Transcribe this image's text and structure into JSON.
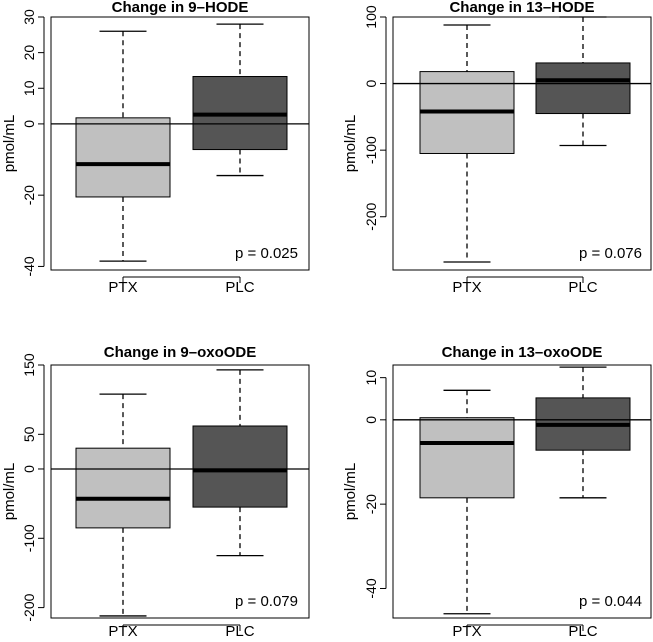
{
  "chart_data": [
    {
      "type": "boxplot",
      "title": "Change in 9–HODE",
      "ylabel": "pmol/mL",
      "categories": [
        "PTX",
        "PLC"
      ],
      "yticks": [
        30,
        20,
        10,
        0,
        -20,
        -40
      ],
      "ylim": [
        -41,
        30
      ],
      "reference_line": 0,
      "annotation": "p = 0.025",
      "boxes": [
        {
          "name": "PTX",
          "whisker_low": -38.5,
          "q1": -20.5,
          "median": -11.3,
          "q3": 1.7,
          "whisker_high": 26,
          "color": "#c0c0c0"
        },
        {
          "name": "PLC",
          "whisker_low": -14.5,
          "q1": -7.2,
          "median": 2.6,
          "q3": 13.3,
          "whisker_high": 28,
          "color": "#555555"
        }
      ]
    },
    {
      "type": "boxplot",
      "title": "Change in 13–HODE",
      "ylabel": "pmol/mL",
      "categories": [
        "PTX",
        "PLC"
      ],
      "yticks": [
        100,
        0,
        -100,
        -200
      ],
      "ylim": [
        -280,
        100
      ],
      "reference_line": 0,
      "annotation": "p = 0.076",
      "boxes": [
        {
          "name": "PTX",
          "whisker_low": -268,
          "q1": -105,
          "median": -42,
          "q3": 18,
          "whisker_high": 88,
          "color": "#c0c0c0"
        },
        {
          "name": "PLC",
          "whisker_low": -93,
          "q1": -45,
          "median": 5,
          "q3": 31,
          "whisker_high": 100,
          "color": "#555555"
        }
      ]
    },
    {
      "type": "boxplot",
      "title": "Change in 9–oxoODE",
      "ylabel": "pmol/mL",
      "categories": [
        "PTX",
        "PLC"
      ],
      "yticks": [
        150,
        50,
        0,
        -100,
        -200
      ],
      "ylim": [
        -215,
        150
      ],
      "reference_line": 0,
      "annotation": "p = 0.079",
      "boxes": [
        {
          "name": "PTX",
          "whisker_low": -212,
          "q1": -85,
          "median": -43,
          "q3": 30,
          "whisker_high": 108,
          "color": "#c0c0c0"
        },
        {
          "name": "PLC",
          "whisker_low": -125,
          "q1": -55,
          "median": -2,
          "q3": 62,
          "whisker_high": 143,
          "color": "#555555"
        }
      ]
    },
    {
      "type": "boxplot",
      "title": "Change in 13–oxoODE",
      "ylabel": "pmol/mL",
      "categories": [
        "PTX",
        "PLC"
      ],
      "yticks": [
        10,
        0,
        -20,
        -40
      ],
      "ylim": [
        -47,
        13
      ],
      "reference_line": 0,
      "annotation": "p = 0.044",
      "boxes": [
        {
          "name": "PTX",
          "whisker_low": -46,
          "q1": -18.5,
          "median": -5.5,
          "q3": 0.5,
          "whisker_high": 7,
          "color": "#c0c0c0"
        },
        {
          "name": "PLC",
          "whisker_low": -18.5,
          "q1": -7.2,
          "median": -1.2,
          "q3": 5.2,
          "whisker_high": 12.5,
          "color": "#555555"
        }
      ]
    }
  ]
}
